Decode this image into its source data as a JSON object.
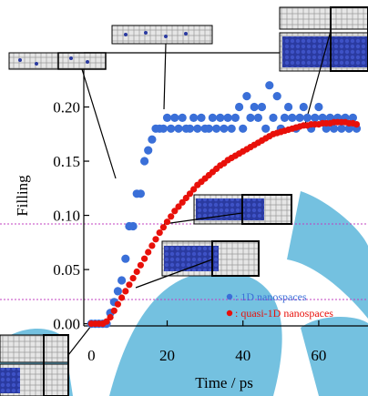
{
  "chart_data": {
    "type": "scatter",
    "xlabel": "Time / ps",
    "ylabel": "Filling",
    "xlim": [
      -2,
      73
    ],
    "ylim": [
      -0.002,
      0.25
    ],
    "x_ticks": [
      0,
      20,
      40,
      60
    ],
    "y_ticks": [
      0.0,
      0.05,
      0.1,
      0.15,
      0.2
    ],
    "y_tick_labels": [
      "0.00",
      "0.05",
      "0.10",
      "0.15",
      "0.20"
    ],
    "grid": false,
    "legend_position": "bottom-right",
    "series": [
      {
        "name": ": 1D nanospaces",
        "color": "#3a6fd8",
        "x": [
          0,
          1,
          2,
          3,
          4,
          5,
          6,
          7,
          8,
          9,
          10,
          11,
          12,
          13,
          14,
          15,
          16,
          17,
          18,
          19,
          20,
          21,
          22,
          23,
          24,
          25,
          26,
          27,
          28,
          29,
          30,
          31,
          32,
          33,
          34,
          35,
          36,
          37,
          38,
          39,
          40,
          41,
          42,
          43,
          44,
          45,
          46,
          47,
          48,
          49,
          50,
          51,
          52,
          53,
          54,
          55,
          56,
          57,
          58,
          59,
          60,
          61,
          62,
          63,
          64,
          65,
          66,
          67,
          68,
          69,
          70
        ],
        "y": [
          0.0,
          0.0,
          0.0,
          0.0,
          0.0,
          0.01,
          0.02,
          0.03,
          0.04,
          0.06,
          0.09,
          0.09,
          0.12,
          0.12,
          0.15,
          0.16,
          0.17,
          0.18,
          0.18,
          0.18,
          0.19,
          0.18,
          0.19,
          0.18,
          0.19,
          0.18,
          0.18,
          0.19,
          0.18,
          0.19,
          0.18,
          0.18,
          0.19,
          0.18,
          0.19,
          0.18,
          0.19,
          0.18,
          0.19,
          0.2,
          0.18,
          0.21,
          0.19,
          0.2,
          0.19,
          0.2,
          0.18,
          0.22,
          0.19,
          0.21,
          0.18,
          0.19,
          0.2,
          0.19,
          0.18,
          0.19,
          0.2,
          0.19,
          0.18,
          0.19,
          0.2,
          0.19,
          0.18,
          0.19,
          0.18,
          0.19,
          0.18,
          0.19,
          0.18,
          0.19,
          0.18
        ]
      },
      {
        "name": ": quasi-1D nanospaces",
        "color": "#e8100a",
        "x": [
          0,
          1,
          2,
          3,
          4,
          5,
          6,
          7,
          8,
          9,
          10,
          11,
          12,
          13,
          14,
          15,
          16,
          17,
          18,
          19,
          20,
          21,
          22,
          23,
          24,
          25,
          26,
          27,
          28,
          29,
          30,
          31,
          32,
          33,
          34,
          35,
          36,
          37,
          38,
          39,
          40,
          41,
          42,
          43,
          44,
          45,
          46,
          47,
          48,
          49,
          50,
          51,
          52,
          53,
          54,
          55,
          56,
          57,
          58,
          59,
          60,
          61,
          62,
          63,
          64,
          65,
          66,
          67,
          68,
          69,
          70
        ],
        "y": [
          0.0,
          0.0,
          0.0,
          0.0,
          0.002,
          0.006,
          0.012,
          0.018,
          0.024,
          0.03,
          0.036,
          0.042,
          0.048,
          0.054,
          0.06,
          0.066,
          0.072,
          0.078,
          0.084,
          0.089,
          0.094,
          0.099,
          0.104,
          0.108,
          0.112,
          0.116,
          0.12,
          0.124,
          0.128,
          0.131,
          0.134,
          0.137,
          0.14,
          0.143,
          0.146,
          0.148,
          0.151,
          0.153,
          0.155,
          0.157,
          0.159,
          0.161,
          0.163,
          0.165,
          0.167,
          0.169,
          0.171,
          0.173,
          0.175,
          0.176,
          0.177,
          0.178,
          0.179,
          0.18,
          0.181,
          0.182,
          0.183,
          0.183,
          0.184,
          0.184,
          0.184,
          0.185,
          0.185,
          0.185,
          0.186,
          0.186,
          0.186,
          0.186,
          0.185,
          0.185,
          0.184
        ]
      }
    ]
  },
  "inset_count": 6
}
